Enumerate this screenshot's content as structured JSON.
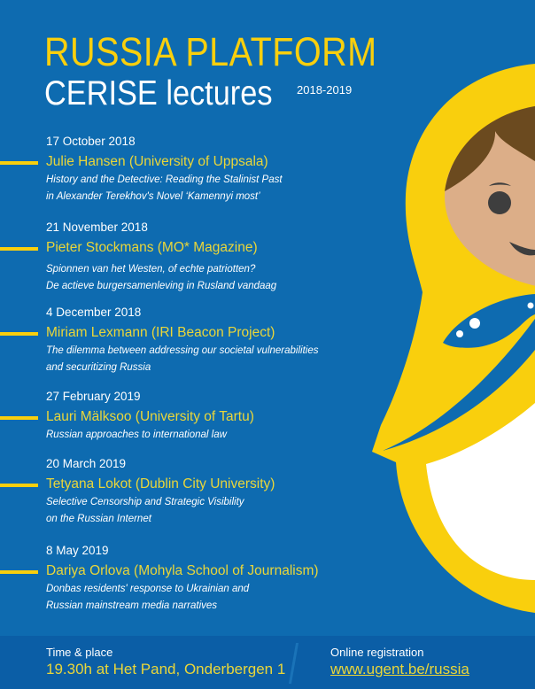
{
  "header": {
    "title": "RUSSIA PLATFORM",
    "subtitle": "CERISE lectures",
    "years": "2018-2019"
  },
  "colors": {
    "background": "#0e6bb0",
    "accent": "#f9cf0d",
    "footer": "#0b5ea6"
  },
  "lectures": [
    {
      "date": "17 October 2018",
      "speaker": "Julie Hansen (University of Uppsala)",
      "title_lines": [
        "History and the Detective: Reading the Stalinist Past",
        "in Alexander Terekhov's Novel ‘Kamennyi most’"
      ]
    },
    {
      "date": "21 November 2018",
      "speaker": "Pieter Stockmans (MO* Magazine)",
      "title_lines": [
        "Spionnen van het Westen, of echte patriotten?",
        "De actieve burgersamenleving in Rusland vandaag"
      ]
    },
    {
      "date": "4 December 2018",
      "speaker": "Miriam Lexmann (IRI Beacon Project)",
      "title_lines": [
        "The dilemma between addressing our societal vulnerabilities",
        "and securitizing Russia"
      ]
    },
    {
      "date": "27 February 2019",
      "speaker": "Lauri Mälksoo (University of Tartu)",
      "title_lines": [
        "Russian approaches to international law"
      ]
    },
    {
      "date": "20 March 2019",
      "speaker": "Tetyana Lokot (Dublin City University)",
      "title_lines": [
        "Selective Censorship and Strategic Visibility",
        "on the Russian Internet"
      ]
    },
    {
      "date": "8 May 2019",
      "speaker": "Dariya Orlova (Mohyla School of Journalism)",
      "title_lines": [
        "Donbas residents' response to Ukrainian and",
        "Russian mainstream media narratives"
      ]
    }
  ],
  "footer": {
    "time_label": "Time & place",
    "time_value": "19.30h at Het Pand, Onderbergen 1",
    "registration_label": "Online registration",
    "registration_link": "www.ugent.be/russia"
  }
}
